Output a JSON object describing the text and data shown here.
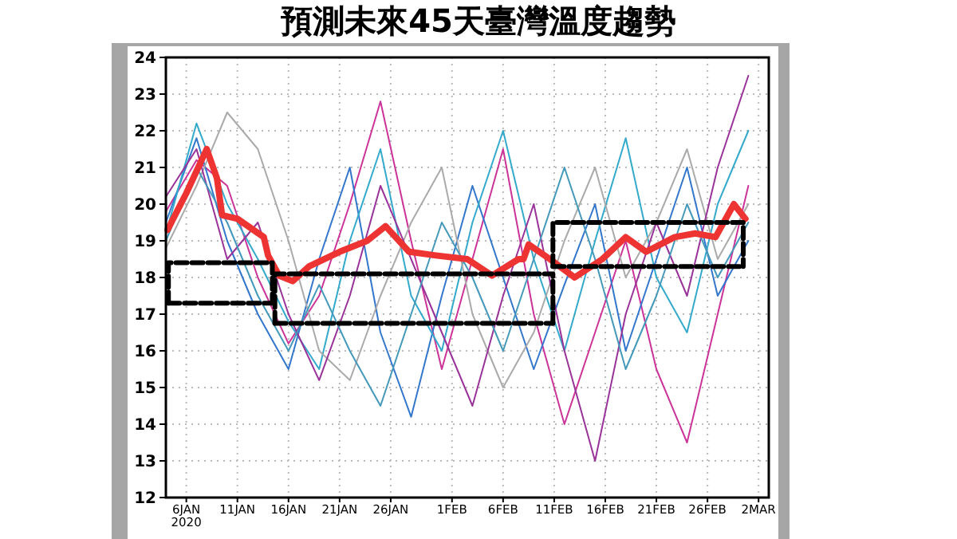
{
  "chart_data": {
    "type": "line",
    "title": "預測未來45天臺灣溫度趨勢",
    "x": [
      "2020-01-04",
      "2020-01-07",
      "2020-01-10",
      "2020-01-13",
      "2020-01-16",
      "2020-01-19",
      "2020-01-22",
      "2020-01-25",
      "2020-01-28",
      "2020-01-31",
      "2020-02-03",
      "2020-02-06",
      "2020-02-09",
      "2020-02-12",
      "2020-02-15",
      "2020-02-18",
      "2020-02-21",
      "2020-02-24",
      "2020-02-27",
      "2020-03-01"
    ],
    "xlim": [
      "2020-01-04",
      "2020-03-03"
    ],
    "xticks": [
      {
        "value": "2020-01-06",
        "label": "6JAN\n2020"
      },
      {
        "value": "2020-01-11",
        "label": "11JAN"
      },
      {
        "value": "2020-01-16",
        "label": "16JAN"
      },
      {
        "value": "2020-01-21",
        "label": "21JAN"
      },
      {
        "value": "2020-01-26",
        "label": "26JAN"
      },
      {
        "value": "2020-02-01",
        "label": "1FEB"
      },
      {
        "value": "2020-02-06",
        "label": "6FEB"
      },
      {
        "value": "2020-02-11",
        "label": "11FEB"
      },
      {
        "value": "2020-02-16",
        "label": "16FEB"
      },
      {
        "value": "2020-02-21",
        "label": "21FEB"
      },
      {
        "value": "2020-02-26",
        "label": "26FEB"
      },
      {
        "value": "2020-03-02",
        "label": "2MAR"
      }
    ],
    "ylim": [
      12,
      24
    ],
    "yticks": [
      12,
      13,
      14,
      15,
      16,
      17,
      18,
      19,
      20,
      21,
      22,
      23,
      24
    ],
    "grid": true,
    "series": [
      {
        "color": "#cc3399",
        "values": [
          19.8,
          21.2,
          20.5,
          18,
          16.2,
          17.5,
          20,
          22.8,
          19,
          15.5,
          18.5,
          21.5,
          17,
          14,
          16.5,
          19,
          15.5,
          13.5,
          17,
          20.5
        ]
      },
      {
        "color": "#3377cc",
        "values": [
          19.5,
          21.8,
          19,
          17,
          15.5,
          18.5,
          21,
          16.5,
          14.2,
          17.5,
          20.5,
          18,
          15.5,
          17.8,
          20,
          16,
          18.5,
          21,
          17.5,
          19
        ]
      },
      {
        "color": "#33aacc",
        "values": [
          19.2,
          22.2,
          20,
          18.5,
          16.8,
          15.5,
          19,
          21.5,
          17.5,
          16,
          19.5,
          22,
          18.5,
          16,
          19,
          21.8,
          18,
          16.5,
          20,
          22
        ]
      },
      {
        "color": "#aaaaaa",
        "values": [
          18.8,
          20.5,
          22.5,
          21.5,
          19,
          16,
          15.2,
          17.5,
          19.5,
          21,
          17,
          15,
          16.5,
          19,
          21,
          18,
          19.5,
          21.5,
          18.5,
          20
        ]
      },
      {
        "color": "#993399",
        "values": [
          20.2,
          21.5,
          18.5,
          19.5,
          17,
          15.2,
          17.5,
          20.5,
          18.5,
          16.5,
          14.5,
          17.5,
          20,
          16,
          13,
          17,
          19.5,
          17.5,
          21,
          23.5
        ]
      },
      {
        "color": "#4499bb",
        "values": [
          19,
          21,
          19.5,
          17.5,
          16,
          17.8,
          16,
          14.5,
          17,
          19.5,
          18,
          16,
          18.5,
          21,
          18.5,
          15.5,
          17.5,
          20,
          18,
          19.5
        ]
      },
      {
        "color": "#ee3333",
        "x": [
          "2020-01-04T04:00",
          "2020-01-06",
          "2020-01-08",
          "2020-01-09",
          "2020-01-09T12:00",
          "2020-01-11",
          "2020-01-13T14:00",
          "2020-01-14",
          "2020-01-15T02:00",
          "2020-01-16T10:00",
          "2020-01-18",
          "2020-01-21",
          "2020-01-23T17:00",
          "2020-01-25T12:00",
          "2020-01-27T19:00",
          "2020-01-30T10:00",
          "2020-02-02T12:00",
          "2020-02-04T22:00",
          "2020-02-07T12:00",
          "2020-02-08",
          "2020-02-08T12:00",
          "2020-02-10T14:00",
          "2020-02-13",
          "2020-02-15T17:00",
          "2020-02-18",
          "2020-02-20",
          "2020-02-22T19:00",
          "2020-02-24T19:00",
          "2020-02-26T19:00",
          "2020-02-28T14:00",
          "2020-02-29T17:00"
        ],
        "values": [
          19.3,
          20.3,
          21.5,
          20.7,
          19.7,
          19.6,
          19.1,
          18.6,
          18.05,
          17.9,
          18.3,
          18.7,
          19.0,
          19.4,
          18.7,
          18.6,
          18.5,
          18.05,
          18.5,
          18.5,
          18.9,
          18.5,
          18.0,
          18.5,
          19.1,
          18.7,
          19.1,
          19.2,
          19.1,
          20.0,
          19.6
        ]
      },
      {
        "color": "#000000",
        "line_style": "dashed",
        "x": [
          "2020-01-04T06:00",
          "2020-01-04T06:00",
          "2020-01-14T10:00",
          "2020-01-14T10:00"
        ],
        "values": [
          17.3,
          18.4,
          18.4,
          17.3
        ]
      },
      {
        "color": "#000000",
        "line_style": "dashed",
        "x": [
          "2020-01-04T06:00",
          "2020-01-14T10:00"
        ],
        "values": [
          17.3,
          17.3
        ]
      },
      {
        "color": "#000000",
        "line_style": "dashed",
        "x": [
          "2020-01-14T16:00",
          "2020-01-14T16:00",
          "2020-02-10T21:00",
          "2020-02-10T21:00"
        ],
        "values": [
          16.75,
          18.1,
          18.1,
          16.75
        ]
      },
      {
        "color": "#000000",
        "line_style": "dashed",
        "x": [
          "2020-01-14T16:00",
          "2020-02-10T21:00"
        ],
        "values": [
          16.75,
          16.75
        ]
      },
      {
        "color": "#000000",
        "line_style": "dashed",
        "x": [
          "2020-02-10T21:00",
          "2020-02-10T21:00",
          "2020-02-29T12:00",
          "2020-02-29T12:00"
        ],
        "values": [
          18.3,
          19.5,
          19.5,
          18.3
        ]
      },
      {
        "color": "#000000",
        "line_style": "dashed",
        "x": [
          "2020-02-10T21:00",
          "2020-02-29T12:00"
        ],
        "values": [
          18.3,
          18.3
        ]
      }
    ]
  }
}
